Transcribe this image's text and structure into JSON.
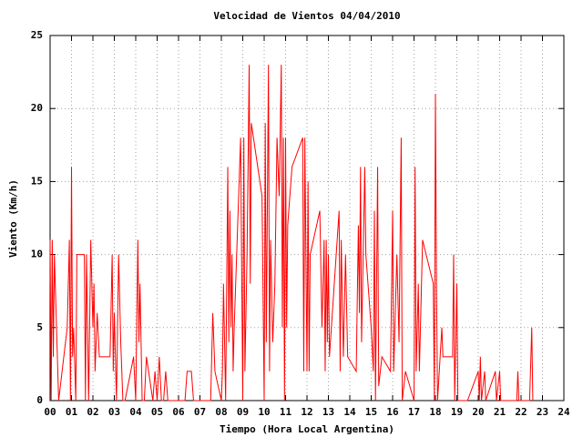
{
  "chart_data": {
    "type": "line",
    "title": "Velocidad de Vientos 04/04/2010",
    "xlabel": "Tiempo (Hora Local Argentina)",
    "ylabel": "Viento (Km/h)",
    "grid": true,
    "xlim": [
      0,
      24
    ],
    "ylim": [
      0,
      25
    ],
    "yticks": [
      0,
      5,
      10,
      15,
      20,
      25
    ],
    "xticks": [
      {
        "value": 0,
        "label": "00"
      },
      {
        "value": 1,
        "label": "01"
      },
      {
        "value": 2,
        "label": "02"
      },
      {
        "value": 3,
        "label": "03"
      },
      {
        "value": 4,
        "label": "04"
      },
      {
        "value": 5,
        "label": "05"
      },
      {
        "value": 6,
        "label": "06"
      },
      {
        "value": 7,
        "label": "07"
      },
      {
        "value": 8,
        "label": "08"
      },
      {
        "value": 9,
        "label": "09"
      },
      {
        "value": 10,
        "label": "10"
      },
      {
        "value": 11,
        "label": "11"
      },
      {
        "value": 12,
        "label": "12"
      },
      {
        "value": 13,
        "label": "13"
      },
      {
        "value": 14,
        "label": "14"
      },
      {
        "value": 15,
        "label": "15"
      },
      {
        "value": 16,
        "label": "16"
      },
      {
        "value": 17,
        "label": "17"
      },
      {
        "value": 18,
        "label": "18"
      },
      {
        "value": 19,
        "label": "19"
      },
      {
        "value": 20,
        "label": "20"
      },
      {
        "value": 21,
        "label": "21"
      },
      {
        "value": 22,
        "label": "22"
      },
      {
        "value": 23,
        "label": "23"
      },
      {
        "value": 24,
        "label": "24"
      }
    ],
    "series": [
      {
        "color": "#ff0000",
        "x": [
          0.0,
          0.05,
          0.1,
          0.15,
          0.2,
          0.3,
          0.4,
          0.8,
          0.9,
          0.95,
          1.0,
          1.05,
          1.1,
          1.2,
          1.25,
          1.6,
          1.65,
          1.7,
          1.8,
          1.9,
          2.0,
          2.05,
          2.1,
          2.2,
          2.3,
          2.8,
          2.9,
          2.95,
          3.0,
          3.1,
          3.2,
          3.3,
          3.4,
          3.5,
          3.9,
          4.0,
          4.1,
          4.15,
          4.2,
          4.3,
          4.4,
          4.5,
          4.8,
          4.9,
          5.0,
          5.1,
          5.2,
          5.3,
          5.4,
          5.5,
          6.0,
          6.3,
          6.4,
          6.6,
          6.7,
          7.5,
          7.6,
          7.7,
          8.0,
          8.05,
          8.1,
          8.2,
          8.3,
          8.35,
          8.4,
          8.45,
          8.5,
          8.55,
          8.6,
          8.9,
          9.0,
          9.05,
          9.1,
          9.2,
          9.3,
          9.35,
          9.4,
          9.5,
          9.9,
          10.0,
          10.05,
          10.1,
          10.2,
          10.25,
          10.3,
          10.4,
          10.5,
          10.6,
          10.7,
          10.8,
          10.85,
          10.9,
          10.95,
          11.0,
          11.05,
          11.1,
          11.3,
          11.8,
          11.85,
          11.9,
          12.0,
          12.05,
          12.1,
          12.15,
          12.6,
          12.7,
          12.8,
          12.85,
          12.9,
          12.95,
          13.0,
          13.05,
          13.5,
          13.55,
          13.6,
          13.7,
          13.8,
          13.9,
          14.3,
          14.4,
          14.45,
          14.5,
          14.55,
          14.7,
          14.75,
          15.0,
          15.1,
          15.15,
          15.2,
          15.3,
          15.35,
          15.5,
          15.9,
          16.0,
          16.05,
          16.2,
          16.3,
          16.4,
          16.45,
          16.6,
          17.0,
          17.05,
          17.1,
          17.2,
          17.25,
          17.4,
          17.9,
          17.95,
          18.0,
          18.05,
          18.1,
          18.3,
          18.35,
          18.8,
          18.85,
          18.9,
          19.0,
          19.05,
          19.5,
          20.0,
          20.05,
          20.1,
          20.15,
          20.3,
          20.35,
          20.8,
          20.85,
          21.0,
          21.05,
          21.8,
          21.85,
          21.9,
          22.4,
          22.5,
          22.55
        ],
        "values": [
          11,
          0,
          11,
          3,
          10,
          5,
          0,
          5,
          11,
          0,
          16,
          3,
          5,
          0,
          10,
          10,
          0,
          10,
          0,
          11,
          5,
          8,
          2,
          6,
          3,
          3,
          10,
          2,
          6,
          0,
          10,
          4,
          0,
          0,
          3,
          0,
          11,
          4,
          8,
          0,
          0,
          3,
          0,
          2,
          0,
          3,
          0,
          0,
          2,
          0,
          0,
          0,
          2,
          2,
          0,
          0,
          6,
          2,
          0,
          2,
          8,
          0,
          16,
          4,
          13,
          5,
          10,
          2,
          5,
          18,
          0,
          18,
          2,
          10,
          23,
          8,
          19,
          18,
          14,
          0,
          19,
          4,
          23,
          2,
          11,
          4,
          8,
          18,
          14,
          23,
          5,
          18,
          0,
          18,
          5,
          12,
          16,
          18,
          2,
          18,
          2,
          15,
          2,
          10,
          13,
          5,
          11,
          2,
          11,
          4,
          10,
          3,
          13,
          2,
          11,
          3,
          10,
          3,
          2,
          12,
          6,
          16,
          4,
          16,
          10,
          5,
          2,
          13,
          0,
          16,
          1,
          3,
          2,
          13,
          2,
          10,
          4,
          18,
          0,
          2,
          0,
          16,
          2,
          8,
          2,
          11,
          8,
          0,
          21,
          8,
          0,
          5,
          3,
          3,
          10,
          0,
          8,
          0,
          0,
          2,
          0,
          3,
          0,
          2,
          0,
          2,
          0,
          2,
          0,
          0,
          2,
          0,
          0,
          5,
          0
        ]
      }
    ]
  }
}
